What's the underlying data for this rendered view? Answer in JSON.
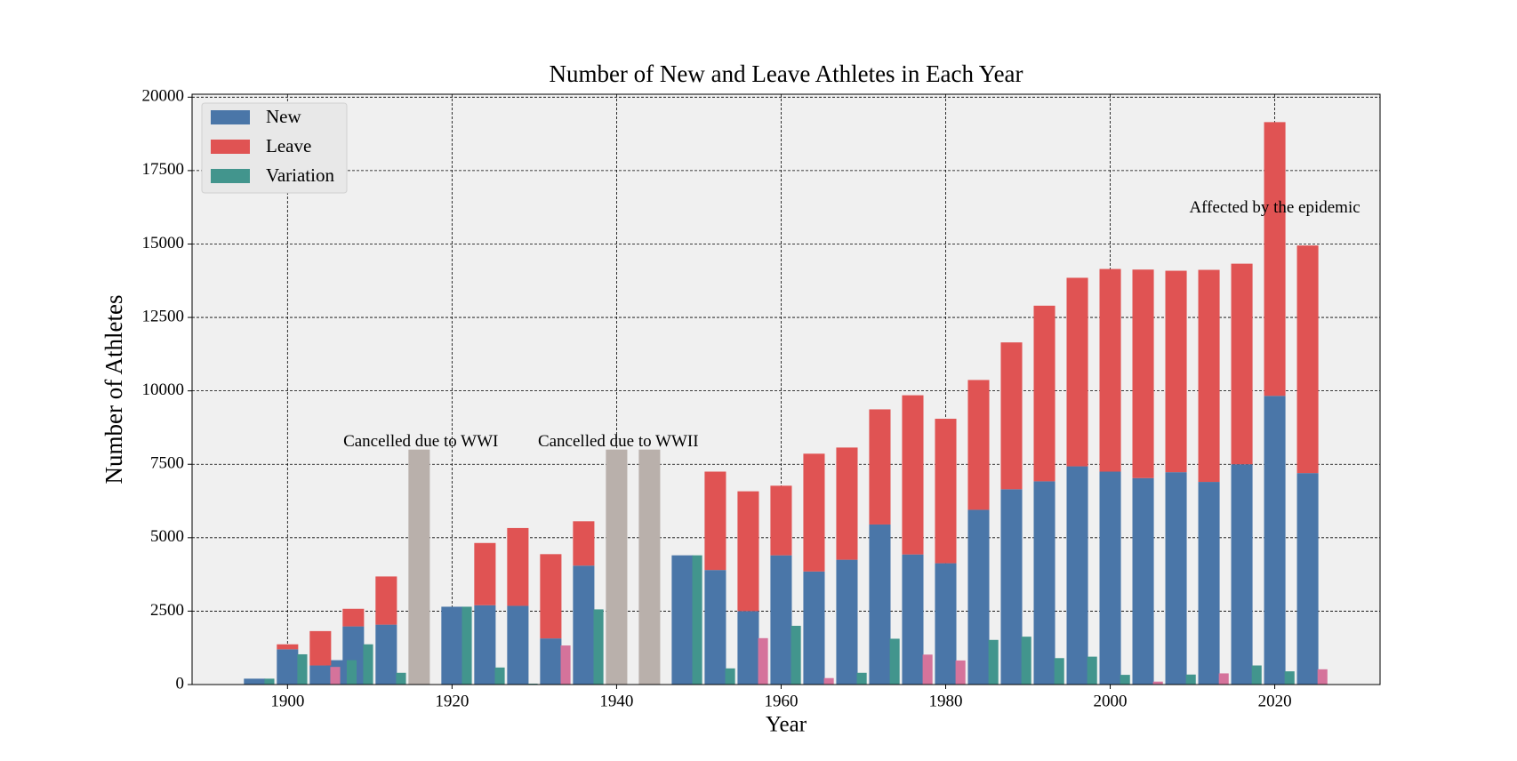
{
  "chart_data": {
    "type": "bar",
    "title": "Number of New and Leave Athletes in Each Year",
    "x_label": "Year",
    "y_label": "Number of Athletes",
    "x": [
      1896,
      1900,
      1904,
      1906,
      1908,
      1912,
      1920,
      1924,
      1928,
      1932,
      1936,
      1948,
      1952,
      1956,
      1960,
      1964,
      1968,
      1972,
      1976,
      1980,
      1984,
      1988,
      1992,
      1996,
      2000,
      2004,
      2008,
      2012,
      2016,
      2020,
      2024
    ],
    "series": [
      {
        "name": "New",
        "color": "#4a76a8",
        "stack": "main",
        "values": [
          200,
          1200,
          650,
          830,
          1980,
          2040,
          2650,
          2700,
          2680,
          1570,
          4050,
          4400,
          3900,
          2500,
          4400,
          3850,
          4250,
          5450,
          4430,
          4130,
          5950,
          6650,
          6920,
          7430,
          7250,
          7030,
          7230,
          6900,
          7500,
          9830,
          7200
        ]
      },
      {
        "name": "Leave",
        "color": "#e05353",
        "stack": "main",
        "values": [
          0,
          170,
          1170,
          0,
          600,
          1640,
          0,
          2120,
          2650,
          2870,
          1510,
          0,
          3350,
          4080,
          2370,
          4010,
          3820,
          3920,
          5420,
          4920,
          4420,
          5000,
          5980,
          6420,
          6900,
          7100,
          6860,
          7220,
          6830,
          9320,
          7750
        ]
      },
      {
        "name": "Variation",
        "color": "#42958d",
        "stack": "side",
        "values": [
          200,
          1030,
          600,
          830,
          1370,
          400,
          2650,
          580,
          30,
          1330,
          2560,
          4400,
          550,
          1580,
          2000,
          220,
          400,
          1560,
          1020,
          820,
          1520,
          1630,
          900,
          950,
          330,
          100,
          340,
          380,
          650,
          450,
          520
        ],
        "colors": [
          "#42958d",
          "#42958d",
          "#d5739b",
          "#42958d",
          "#42958d",
          "#42958d",
          "#42958d",
          "#42958d",
          "#42958d",
          "#d5739b",
          "#42958d",
          "#42958d",
          "#42958d",
          "#d5739b",
          "#42958d",
          "#d5739b",
          "#42958d",
          "#42958d",
          "#d5739b",
          "#d5739b",
          "#42958d",
          "#42958d",
          "#42958d",
          "#42958d",
          "#42958d",
          "#d5739b",
          "#42958d",
          "#d5739b",
          "#42958d",
          "#42958d",
          "#d5739b"
        ]
      }
    ],
    "cancelled": {
      "x": [
        1916,
        1940,
        1944
      ],
      "values": [
        8000,
        8000,
        8000
      ],
      "color": "#b9b0ab"
    },
    "annotations": [
      "Cancelled due to WWI",
      "Cancelled due to WWII",
      "Affected by the epidemic"
    ],
    "xlim": [
      1888.4,
      2032.8
    ],
    "xticks": [
      1900,
      1920,
      1940,
      1960,
      1980,
      2000,
      2020
    ],
    "ylim": [
      0,
      20100
    ],
    "yticks": [
      0,
      2500,
      5000,
      7500,
      10000,
      12500,
      15000,
      17500,
      20000
    ],
    "grid": true,
    "legend": "upper left"
  }
}
